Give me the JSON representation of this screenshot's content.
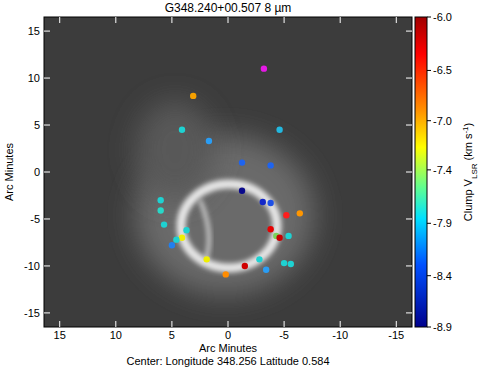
{
  "chart_data": {
    "type": "scatter",
    "title": "G348.240+00.507  8 µm",
    "xlabel": "Arc Minutes",
    "ylabel": "Arc Minutes",
    "caption": "Center:  Longitude 348.256  Latitude 0.584",
    "xlim": [
      16.4,
      -16.4
    ],
    "ylim": [
      -16.5,
      16.5
    ],
    "xticks": [
      15,
      10,
      5,
      0,
      -5,
      -10,
      -15
    ],
    "yticks": [
      -15,
      -10,
      -5,
      0,
      5,
      10,
      15
    ],
    "marker": "circle",
    "series": [
      {
        "x": [
          -3.2,
          3.1,
          4.1,
          1.7,
          -4.6,
          -1.25,
          -3.8,
          -1.25,
          -3.1,
          -3.8,
          -5.2,
          -6.4,
          -3.8,
          -4.3,
          -4.6,
          -5.4,
          -5.0,
          -5.6,
          -3.4,
          -2.8,
          -1.5,
          0.2,
          1.9,
          3.7,
          4.1,
          5.0,
          4.6,
          6.0,
          6.0,
          5.7
        ],
        "values": [
          11.0,
          8.1,
          4.5,
          3.3,
          4.5,
          1.0,
          0.7,
          -2.0,
          -3.2,
          -3.3,
          -4.6,
          -4.4,
          -6.1,
          -6.8,
          -7.0,
          -6.8,
          -9.7,
          -9.8,
          -10.4,
          -9.3,
          -10.0,
          -10.9,
          -9.3,
          -6.2,
          -7.0,
          -7.8,
          -7.2,
          -3.0,
          -4.1,
          -5.6
        ],
        "vlsr": [
          -5.8,
          -6.8,
          -7.7,
          -7.9,
          -7.8,
          -8.2,
          -8.2,
          -8.9,
          -8.6,
          -8.3,
          -6.1,
          -6.7,
          -6.2,
          -7.4,
          -6.1,
          -7.7,
          -7.7,
          -7.7,
          -7.9,
          -7.7,
          -6.1,
          -6.6,
          -7.0,
          -7.7,
          -7.0,
          -8.0,
          -7.7,
          -7.7,
          -7.6,
          -7.7
        ],
        "colors": [
          "#e619e6",
          "#f5a000",
          "#1ed2d2",
          "#2a9df4",
          "#22b8e0",
          "#1e64f0",
          "#1e64f0",
          "#0a0a8c",
          "#1428c8",
          "#1e50e6",
          "#ff1e1e",
          "#ff9600",
          "#e60000",
          "#7ad35a",
          "#c80000",
          "#1ed2d2",
          "#1ed2d2",
          "#1ed2d2",
          "#2a9df4",
          "#1ed2d2",
          "#d00000",
          "#ff8c00",
          "#f0f000",
          "#1ed2d2",
          "#f0f000",
          "#2080f0",
          "#1ed2d2",
          "#1ed2d2",
          "#28d8c8",
          "#1ed2d2"
        ]
      }
    ],
    "colorbar": {
      "label": [
        "Clump V",
        "LSR",
        " (km s",
        "-1",
        ")"
      ],
      "range": [
        -8.9,
        -6.0
      ],
      "ticks": [
        {
          "value": -6.0,
          "label": "-6.0"
        },
        -6.5,
        {
          "value": -6.97,
          "label": "-7.0"
        },
        {
          "value": -7.43,
          "label": "-7.4"
        },
        {
          "value": -7.93,
          "label": "-7.9"
        },
        {
          "value": -8.42,
          "label": "-8.4"
        },
        -8.9
      ]
    }
  }
}
